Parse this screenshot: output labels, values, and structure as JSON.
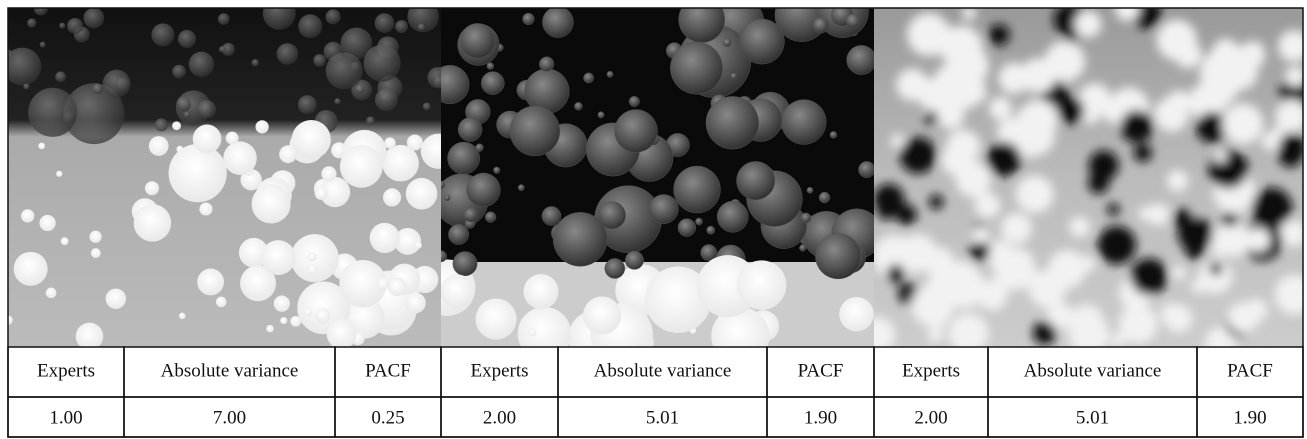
{
  "panels": [
    {
      "headers": [
        "Experts",
        "Absolute variance",
        "PACF"
      ],
      "values": [
        "1.00",
        "7.00",
        "0.25"
      ]
    },
    {
      "headers": [
        "Experts",
        "Absolute variance",
        "PACF"
      ],
      "values": [
        "2.00",
        "5.01",
        "1.90"
      ]
    },
    {
      "headers": [
        "Experts",
        "Absolute variance",
        "PACF"
      ],
      "values": [
        "2.00",
        "5.01",
        "1.90"
      ]
    }
  ]
}
